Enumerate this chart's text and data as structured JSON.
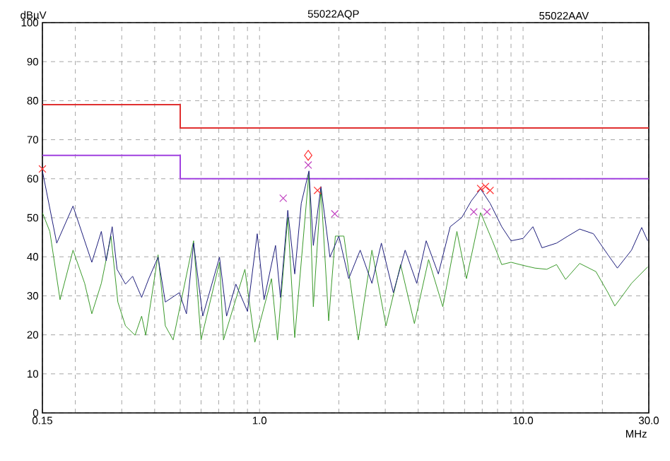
{
  "chart_data": {
    "type": "line",
    "ylabel": "dBµV",
    "xlabel": "MHz",
    "annotations": [
      "55022AQP",
      "55022AAV"
    ],
    "log": "x",
    "grid": true,
    "xlim": [
      0.15,
      30
    ],
    "xticks": [
      0.15,
      {
        "value": 1,
        "label": "1.0"
      },
      {
        "value": 10,
        "label": "10.0"
      },
      {
        "value": 30,
        "label": "30.0"
      }
    ],
    "ylim": [
      0,
      100
    ],
    "yticks": [
      0,
      10,
      20,
      30,
      40,
      50,
      60,
      70,
      80,
      90,
      100
    ],
    "series": [
      {
        "type": "step",
        "color": "#e03030",
        "x": [
          0.15,
          0.5,
          30
        ],
        "values": [
          79,
          73,
          73
        ]
      },
      {
        "type": "step",
        "color": "#a040e0",
        "x": [
          0.15,
          0.5,
          30
        ],
        "values": [
          66,
          60,
          60
        ]
      },
      {
        "color": "#3a9a2a",
        "x": [
          0.15,
          0.16,
          0.175,
          0.196,
          0.217,
          0.231,
          0.251,
          0.273,
          0.29,
          0.31,
          0.337,
          0.357,
          0.37,
          0.412,
          0.439,
          0.47,
          0.562,
          0.6,
          0.705,
          0.73,
          0.88,
          0.96,
          1.11,
          1.17,
          1.28,
          1.36,
          1.54,
          1.6,
          1.71,
          1.83,
          1.94,
          2.09,
          2.37,
          2.67,
          3.02,
          3.43,
          3.87,
          4.38,
          4.96,
          5.61,
          6.1,
          6.9,
          7.65,
          8.3,
          9.0,
          10.0,
          11.1,
          12.3,
          13.4,
          14.5,
          16.4,
          18.9,
          21.0,
          22.3,
          25.8,
          29.7
        ],
        "values": [
          51.3,
          46.5,
          29,
          41.7,
          33.2,
          25.4,
          33.2,
          45.3,
          28.4,
          22.3,
          19.9,
          24.8,
          19.9,
          40.5,
          22.3,
          18.7,
          44.1,
          18.7,
          38.6,
          18.7,
          36.8,
          18.1,
          34.4,
          18.7,
          50.1,
          19.3,
          61.6,
          27.2,
          57.4,
          23.6,
          45.3,
          45.3,
          18.7,
          41.7,
          22.3,
          38,
          22.9,
          39.3,
          27.2,
          46.5,
          34.4,
          51.3,
          44.1,
          38,
          38.6,
          37.8,
          37.1,
          36.8,
          38,
          34.2,
          38.3,
          36.2,
          30.8,
          27.4,
          33.2,
          37.4
        ]
      },
      {
        "color": "#1c1c7a",
        "x": [
          0.15,
          0.17,
          0.196,
          0.231,
          0.251,
          0.262,
          0.276,
          0.288,
          0.31,
          0.33,
          0.357,
          0.38,
          0.412,
          0.439,
          0.496,
          0.528,
          0.562,
          0.609,
          0.705,
          0.75,
          0.813,
          0.9,
          0.98,
          1.04,
          1.15,
          1.2,
          1.28,
          1.36,
          1.44,
          1.54,
          1.6,
          1.71,
          1.85,
          2.0,
          2.18,
          2.41,
          2.67,
          2.9,
          3.22,
          3.57,
          3.95,
          4.29,
          4.77,
          5.29,
          5.86,
          6.36,
          6.9,
          7.5,
          8.3,
          9.0,
          10.0,
          10.9,
          11.8,
          13.4,
          14.8,
          16.4,
          18.5,
          21.0,
          22.8,
          25.8,
          28.2,
          29.7
        ],
        "values": [
          62,
          43.5,
          53,
          38.6,
          46.5,
          39,
          47.7,
          36.8,
          33,
          35,
          29.6,
          34.4,
          39.9,
          28.4,
          30.8,
          25.4,
          43.5,
          24.8,
          39.9,
          24.8,
          33,
          26,
          45.9,
          29,
          42.9,
          29.6,
          51.9,
          35.6,
          53.7,
          62,
          42.9,
          58,
          39.9,
          45.3,
          34.4,
          41.7,
          33.2,
          43.5,
          30.8,
          41.7,
          33.2,
          44.1,
          35.6,
          47.7,
          50.1,
          54.3,
          57.4,
          53.7,
          47.7,
          44.1,
          44.7,
          47.7,
          42.3,
          43.5,
          45.3,
          47.1,
          45.9,
          40.5,
          37.1,
          41.7,
          47.5,
          44.1
        ]
      },
      {
        "type": "scatter",
        "color": "#ff3030",
        "marker": "cross",
        "x": [
          0.15,
          1.66,
          6.9,
          7.2,
          7.5
        ],
        "values": [
          62.5,
          57,
          57.5,
          58,
          57
        ]
      },
      {
        "type": "scatter",
        "color": "#ff3030",
        "marker": "diamond",
        "x": [
          1.53
        ],
        "values": [
          66
        ]
      },
      {
        "type": "scatter",
        "color": "#c040c0",
        "marker": "cross",
        "x": [
          1.23,
          1.53,
          1.93,
          6.5,
          7.3
        ],
        "values": [
          55,
          63.5,
          51,
          51.5,
          51.5
        ]
      }
    ]
  }
}
